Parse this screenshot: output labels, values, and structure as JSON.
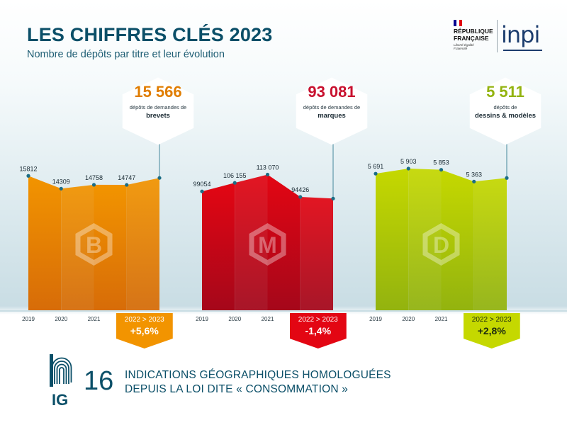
{
  "header": {
    "title": "LES CHIFFRES CLÉS 2023",
    "subtitle": "Nombre de dépôts par titre et leur évolution"
  },
  "logos": {
    "republique": "RÉPUBLIQUE FRANÇAISE",
    "motto": "Liberté Égalité Fraternité",
    "inpi": "inpi"
  },
  "chart_data": {
    "type": "area",
    "title": "LES CHIFFRES CLÉS 2023",
    "x": [
      "2019",
      "2020",
      "2021",
      "2022",
      "2023"
    ],
    "series": [
      {
        "name": "brevets",
        "letter": "B",
        "values": [
          15812,
          14309,
          14758,
          14747,
          15566
        ],
        "labels": [
          "15812",
          "14309",
          "14758",
          "14747",
          "15 566"
        ],
        "ylim": [
          0,
          24000
        ],
        "color": "#f29400",
        "color_dark": "#d76c08",
        "total": "15 566",
        "total_label_1": "dépôts de demandes de",
        "total_label_2": "brevets",
        "evolution_range": "2022 > 2023",
        "evolution": "+5,6%"
      },
      {
        "name": "marques",
        "letter": "M",
        "values": [
          99054,
          106155,
          113070,
          94426,
          93081
        ],
        "labels": [
          "99054",
          "106 155",
          "113 070",
          "94426",
          "93 081"
        ],
        "ylim": [
          0,
          170000
        ],
        "color": "#e30613",
        "color_dark": "#a5071a",
        "total": "93 081",
        "total_label_1": "dépôts de demandes de",
        "total_label_2": "marques",
        "evolution_range": "2022 > 2023",
        "evolution": "-1,4%"
      },
      {
        "name": "dessins & modèles",
        "letter": "D",
        "values": [
          5691,
          5903,
          5853,
          5363,
          5511
        ],
        "labels": [
          "5 691",
          "5 903",
          "5 853",
          "5 363",
          "5 511"
        ],
        "ylim": [
          0,
          8500
        ],
        "color": "#c5d800",
        "color_dark": "#93b30f",
        "total": "5 511",
        "total_label_1": "dépôts de",
        "total_label_2": "dessins & modèles",
        "evolution_range": "2022 > 2023",
        "evolution": "+2,8%"
      }
    ]
  },
  "colors": {
    "title": "#0b4f68",
    "brevets_total": "#e07d00",
    "marques_total": "#c8102e",
    "dessins_total": "#93b30f",
    "dot": "#1c6d85"
  },
  "footer": {
    "ig_label": "IG",
    "count": "16",
    "line1": "INDICATIONS GÉOGRAPHIQUES HOMOLOGUÉES",
    "line2": "DEPUIS LA LOI DITE « CONSOMMATION »"
  }
}
